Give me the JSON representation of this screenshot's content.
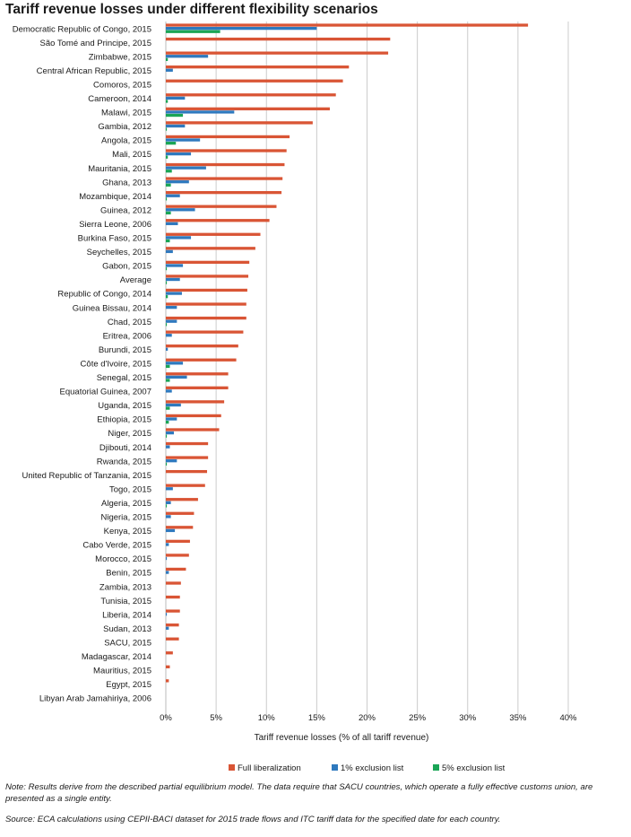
{
  "chart_data": {
    "type": "bar",
    "orientation": "horizontal",
    "title": "Tariff revenue losses under different flexibility scenarios",
    "xlabel": "Tariff revenue losses (% of all tariff revenue)",
    "ylabel": "",
    "xlim": [
      0,
      40
    ],
    "xticks": [
      "0%",
      "5%",
      "10%",
      "15%",
      "20%",
      "25%",
      "30%",
      "35%",
      "40%"
    ],
    "grid": true,
    "legend_position": "bottom",
    "categories": [
      "Democratic Republic of Congo, 2015",
      "São Tomé and Principe, 2015",
      "Zimbabwe, 2015",
      "Central African Republic, 2015",
      "Comoros, 2015",
      "Cameroon, 2014",
      "Malawi, 2015",
      "Gambia, 2012",
      "Angola, 2015",
      "Mali, 2015",
      "Mauritania, 2015",
      "Ghana, 2013",
      "Mozambique, 2014",
      "Guinea, 2012",
      "Sierra Leone, 2006",
      "Burkina Faso, 2015",
      "Seychelles, 2015",
      "Gabon, 2015",
      "Average",
      "Republic of Congo, 2014",
      "Guinea Bissau, 2014",
      "Chad, 2015",
      "Eritrea, 2006",
      "Burundi, 2015",
      "Côte d'Ivoire, 2015",
      "Senegal, 2015",
      "Equatorial Guinea, 2007",
      "Uganda, 2015",
      "Ethiopia, 2015",
      "Niger, 2015",
      "Djibouti, 2014",
      "Rwanda, 2015",
      "United Republic of Tanzania, 2015",
      "Togo, 2015",
      "Algeria, 2015",
      "Nigeria, 2015",
      "Kenya, 2015",
      "Cabo Verde, 2015",
      "Morocco, 2015",
      "Benin, 2015",
      "Zambia, 2013",
      "Tunisia, 2015",
      "Liberia, 2014",
      "Sudan, 2013",
      "SACU, 2015",
      "Madagascar, 2014",
      "Mauritius, 2015",
      "Egypt, 2015",
      "Libyan Arab Jamahiriya, 2006"
    ],
    "series": [
      {
        "name": "Full liberalization",
        "color": "#d95535",
        "values": [
          36.0,
          22.3,
          22.1,
          18.2,
          17.6,
          16.9,
          16.3,
          14.6,
          12.3,
          12.0,
          11.8,
          11.6,
          11.5,
          11.0,
          10.3,
          9.4,
          8.9,
          8.3,
          8.2,
          8.1,
          8.0,
          8.0,
          7.7,
          7.2,
          7.0,
          6.2,
          6.2,
          5.8,
          5.5,
          5.3,
          4.2,
          4.2,
          4.1,
          3.9,
          3.2,
          2.8,
          2.7,
          2.4,
          2.3,
          2.0,
          1.5,
          1.4,
          1.4,
          1.3,
          1.3,
          0.7,
          0.4,
          0.3,
          0.0
        ]
      },
      {
        "name": "1% exclusion list",
        "color": "#2f79be",
        "values": [
          15.0,
          0.0,
          4.2,
          0.7,
          0.0,
          1.9,
          6.8,
          1.9,
          3.4,
          2.5,
          4.0,
          2.3,
          1.4,
          2.9,
          1.2,
          2.5,
          0.7,
          1.7,
          1.4,
          1.6,
          1.1,
          1.1,
          0.6,
          0.2,
          1.7,
          2.1,
          0.6,
          1.5,
          1.1,
          0.8,
          0.4,
          1.1,
          0.0,
          0.7,
          0.5,
          0.5,
          0.9,
          0.3,
          0.1,
          0.3,
          0.0,
          0.0,
          0.1,
          0.3,
          0.0,
          0.0,
          0.0,
          0.0,
          0.0
        ]
      },
      {
        "name": "5% exclusion list",
        "color": "#1aa556",
        "values": [
          5.4,
          0.0,
          0.2,
          0.0,
          0.0,
          0.2,
          1.7,
          0.1,
          1.0,
          0.2,
          0.6,
          0.5,
          0.1,
          0.5,
          0.0,
          0.4,
          0.0,
          0.1,
          0.1,
          0.2,
          0.0,
          0.1,
          0.0,
          0.0,
          0.4,
          0.4,
          0.0,
          0.4,
          0.3,
          0.1,
          0.0,
          0.1,
          0.0,
          0.0,
          0.1,
          0.0,
          0.0,
          0.0,
          0.0,
          0.0,
          0.0,
          0.0,
          0.0,
          0.0,
          0.0,
          0.0,
          0.0,
          0.0,
          0.0
        ]
      }
    ]
  },
  "notes": {
    "note": "Note: Results derive from the described partial equilibrium model. The data require that SACU countries, which operate a fully effective customs union, are presented as a single entity.",
    "source": "Source: ECA calculations using CEPII-BACI dataset for 2015 trade flows and ITC tariff data for the specified date for each country."
  }
}
